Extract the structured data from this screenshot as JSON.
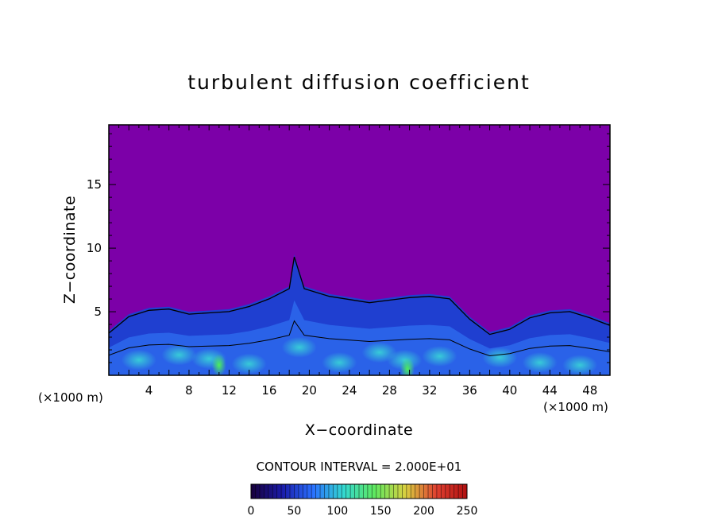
{
  "chart_data": {
    "type": "heatmap",
    "title": "turbulent diffusion coefficient",
    "xlabel": "X−coordinate",
    "ylabel": "Z−coordinate",
    "x_unit": "(×1000 m)",
    "y_unit": "(×1000 m)",
    "xlim": [
      0,
      50
    ],
    "ylim": [
      0,
      19.7
    ],
    "xticks": [
      4,
      8,
      12,
      16,
      20,
      24,
      28,
      32,
      36,
      40,
      44,
      48
    ],
    "yticks": [
      5,
      10,
      15
    ],
    "contour_interval_label": "CONTOUR INTERVAL = 2.000E+01",
    "colorbar": {
      "min": 0,
      "max": 250,
      "ticks": [
        0,
        50,
        100,
        150,
        200,
        250
      ],
      "colors": [
        "#18003a",
        "#1a1aa8",
        "#2a70ff",
        "#33d8d0",
        "#5ee860",
        "#d8d040",
        "#e04030",
        "#b01010"
      ]
    },
    "background_color": "#7c00a8",
    "turbulent_layer_top": [
      {
        "x": 0,
        "z": 3.5
      },
      {
        "x": 2,
        "z": 4.8
      },
      {
        "x": 4,
        "z": 5.3
      },
      {
        "x": 6,
        "z": 5.4
      },
      {
        "x": 8,
        "z": 5.0
      },
      {
        "x": 10,
        "z": 5.1
      },
      {
        "x": 12,
        "z": 5.2
      },
      {
        "x": 14,
        "z": 5.6
      },
      {
        "x": 16,
        "z": 6.2
      },
      {
        "x": 18,
        "z": 7.0
      },
      {
        "x": 18.5,
        "z": 9.5
      },
      {
        "x": 19.5,
        "z": 7.0
      },
      {
        "x": 22,
        "z": 6.4
      },
      {
        "x": 26,
        "z": 5.9
      },
      {
        "x": 28,
        "z": 6.1
      },
      {
        "x": 30,
        "z": 6.3
      },
      {
        "x": 32,
        "z": 6.4
      },
      {
        "x": 34,
        "z": 6.2
      },
      {
        "x": 36,
        "z": 4.6
      },
      {
        "x": 38,
        "z": 3.4
      },
      {
        "x": 40,
        "z": 3.8
      },
      {
        "x": 42,
        "z": 4.7
      },
      {
        "x": 44,
        "z": 5.1
      },
      {
        "x": 46,
        "z": 5.2
      },
      {
        "x": 48,
        "z": 4.7
      },
      {
        "x": 50,
        "z": 4.1
      }
    ]
  }
}
